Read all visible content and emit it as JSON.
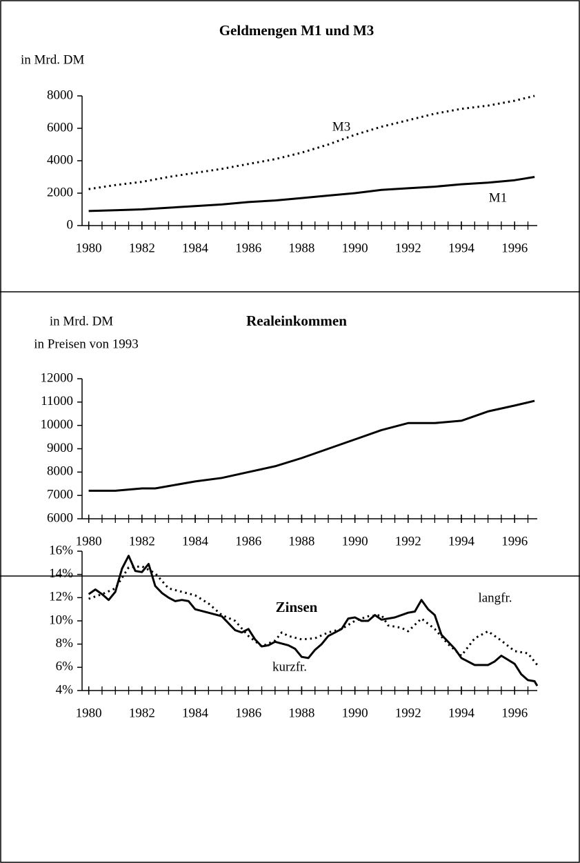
{
  "chart_data": [
    {
      "type": "line",
      "title": "Geldmengen M1 und M3",
      "y_label": [
        "in Mrd. DM"
      ],
      "xlim": [
        1979.75,
        1996.85
      ],
      "xticks": [
        1980,
        1982,
        1984,
        1986,
        1988,
        1990,
        1992,
        1994,
        1996
      ],
      "x_minor_ticks": [
        1980,
        1980.5,
        1981,
        1981.5,
        1982,
        1982.5,
        1983,
        1983.5,
        1984,
        1984.5,
        1985,
        1985.5,
        1986,
        1986.5,
        1987,
        1987.5,
        1988,
        1988.5,
        1989,
        1989.5,
        1990,
        1990.5,
        1991,
        1991.5,
        1992,
        1992.5,
        1993,
        1993.5,
        1994,
        1994.5,
        1995,
        1995.5,
        1996,
        1996.5
      ],
      "ylim": [
        0,
        8000
      ],
      "yticks": [
        0,
        2000,
        4000,
        6000,
        8000
      ],
      "series": [
        {
          "name": "M3",
          "color": "#000000",
          "style": "dotted",
          "x": [
            1980,
            1981,
            1982,
            1983,
            1984,
            1985,
            1986,
            1987,
            1988,
            1989,
            1990,
            1991,
            1992,
            1993,
            1994,
            1995,
            1996,
            1996.75
          ],
          "values": [
            2250,
            2500,
            2700,
            3000,
            3250,
            3500,
            3800,
            4100,
            4500,
            5000,
            5600,
            6100,
            6500,
            6900,
            7200,
            7400,
            7700,
            8000
          ]
        },
        {
          "name": "M1",
          "color": "#000000",
          "style": "solid",
          "x": [
            1980,
            1981,
            1982,
            1983,
            1984,
            1985,
            1986,
            1987,
            1988,
            1989,
            1990,
            1991,
            1992,
            1993,
            1994,
            1995,
            1996,
            1996.75
          ],
          "values": [
            900,
            950,
            1000,
            1100,
            1200,
            1300,
            1450,
            1550,
            1700,
            1850,
            2000,
            2200,
            2300,
            2400,
            2550,
            2650,
            2800,
            3000
          ]
        }
      ]
    },
    {
      "type": "line",
      "title": "Realeinkommen",
      "y_label": [
        "in Mrd. DM",
        "in Preisen von 1993"
      ],
      "xlim": [
        1979.75,
        1996.85
      ],
      "xticks": [
        1980,
        1982,
        1984,
        1986,
        1988,
        1990,
        1992,
        1994,
        1996
      ],
      "x_minor_ticks": [
        1980,
        1980.5,
        1981,
        1981.5,
        1982,
        1982.5,
        1983,
        1983.5,
        1984,
        1984.5,
        1985,
        1985.5,
        1986,
        1986.5,
        1987,
        1987.5,
        1988,
        1988.5,
        1989,
        1989.5,
        1990,
        1990.5,
        1991,
        1991.5,
        1992,
        1992.5,
        1993,
        1993.5,
        1994,
        1994.5,
        1995,
        1995.5,
        1996,
        1996.5
      ],
      "ylim": [
        6000,
        12000
      ],
      "yticks": [
        6000,
        7000,
        8000,
        9000,
        10000,
        11000,
        12000
      ],
      "series": [
        {
          "color": "#000000",
          "style": "solid",
          "x": [
            1980,
            1981,
            1982,
            1982.5,
            1983,
            1984,
            1985,
            1986,
            1987,
            1988,
            1989,
            1990,
            1991,
            1992,
            1993,
            1994,
            1995,
            1996,
            1996.75
          ],
          "values": [
            7200,
            7200,
            7300,
            7300,
            7400,
            7600,
            7750,
            8000,
            8250,
            8600,
            9000,
            9400,
            9800,
            10100,
            10100,
            10200,
            10600,
            10850,
            11050
          ]
        }
      ]
    },
    {
      "type": "line",
      "title": "Zinsen",
      "xlim": [
        1979.75,
        1996.85
      ],
      "xticks": [
        1980,
        1982,
        1984,
        1986,
        1988,
        1990,
        1992,
        1994,
        1996
      ],
      "x_minor_ticks": [
        1980,
        1980.5,
        1981,
        1981.5,
        1982,
        1982.5,
        1983,
        1983.5,
        1984,
        1984.5,
        1985,
        1985.5,
        1986,
        1986.5,
        1987,
        1987.5,
        1988,
        1988.5,
        1989,
        1989.5,
        1990,
        1990.5,
        1991,
        1991.5,
        1992,
        1992.5,
        1993,
        1993.5,
        1994,
        1994.5,
        1995,
        1995.5,
        1996,
        1996.5
      ],
      "ylim": [
        4,
        16
      ],
      "yticks": [
        {
          "value": 4,
          "label": "4%"
        },
        {
          "value": 6,
          "label": "6%"
        },
        {
          "value": 8,
          "label": "8%"
        },
        {
          "value": 10,
          "label": "10%"
        },
        {
          "value": 12,
          "label": "12%"
        },
        {
          "value": 14,
          "label": "14%"
        },
        {
          "value": 16,
          "label": "16%"
        }
      ],
      "series": [
        {
          "name": "kurzfr.",
          "color": "#000000",
          "style": "solid",
          "x": [
            1980,
            1980.25,
            1980.5,
            1980.75,
            1981,
            1981.25,
            1981.5,
            1981.75,
            1982,
            1982.25,
            1982.5,
            1982.75,
            1983,
            1983.25,
            1983.5,
            1983.75,
            1984,
            1984.5,
            1985,
            1985.5,
            1985.75,
            1986,
            1986.25,
            1986.5,
            1986.75,
            1987,
            1987.5,
            1987.75,
            1988,
            1988.25,
            1988.5,
            1988.75,
            1989,
            1989.5,
            1989.75,
            1990,
            1990.25,
            1990.5,
            1990.75,
            1991,
            1991.5,
            1992,
            1992.25,
            1992.5,
            1992.75,
            1993,
            1993.25,
            1993.75,
            1994,
            1994.5,
            1995,
            1995.25,
            1995.5,
            1996,
            1996.25,
            1996.5,
            1996.75,
            1996.85
          ],
          "values": [
            12.3,
            12.7,
            12.3,
            11.8,
            12.5,
            14.5,
            15.6,
            14.3,
            14.2,
            14.9,
            13,
            12.4,
            12,
            11.7,
            11.8,
            11.7,
            11,
            10.7,
            10.4,
            9.2,
            9,
            9.3,
            8.4,
            7.8,
            7.9,
            8.2,
            7.9,
            7.6,
            6.9,
            6.8,
            7.5,
            8,
            8.7,
            9.3,
            10.2,
            10.3,
            10,
            10,
            10.5,
            10.1,
            10.3,
            10.7,
            10.8,
            11.8,
            11,
            10.5,
            8.8,
            7.6,
            6.8,
            6.2,
            6.2,
            6.5,
            7,
            6.3,
            5.4,
            4.9,
            4.8,
            4.4
          ]
        },
        {
          "name": "langfr.",
          "color": "#000000",
          "style": "dotted",
          "x": [
            1980,
            1980.5,
            1981,
            1981.5,
            1982,
            1982.5,
            1983,
            1983.5,
            1984,
            1984.5,
            1985,
            1985.5,
            1986,
            1986.5,
            1987,
            1987.25,
            1987.5,
            1988,
            1988.5,
            1989,
            1989.5,
            1990,
            1990.5,
            1991,
            1991.25,
            1991.75,
            1992,
            1992.5,
            1993,
            1993.5,
            1994,
            1994.5,
            1995,
            1995.5,
            1996,
            1996.5,
            1996.85
          ],
          "values": [
            11.9,
            12.3,
            12.8,
            14.6,
            14.7,
            14.1,
            12.8,
            12.5,
            12.2,
            11.5,
            10.5,
            10,
            8.7,
            7.8,
            8.3,
            9,
            8.7,
            8.4,
            8.5,
            9,
            9.3,
            10,
            10.4,
            10.5,
            9.6,
            9.4,
            9.1,
            10.2,
            9.3,
            8,
            7,
            8.5,
            9.1,
            8.3,
            7.4,
            7.2,
            6.2
          ]
        }
      ]
    }
  ]
}
